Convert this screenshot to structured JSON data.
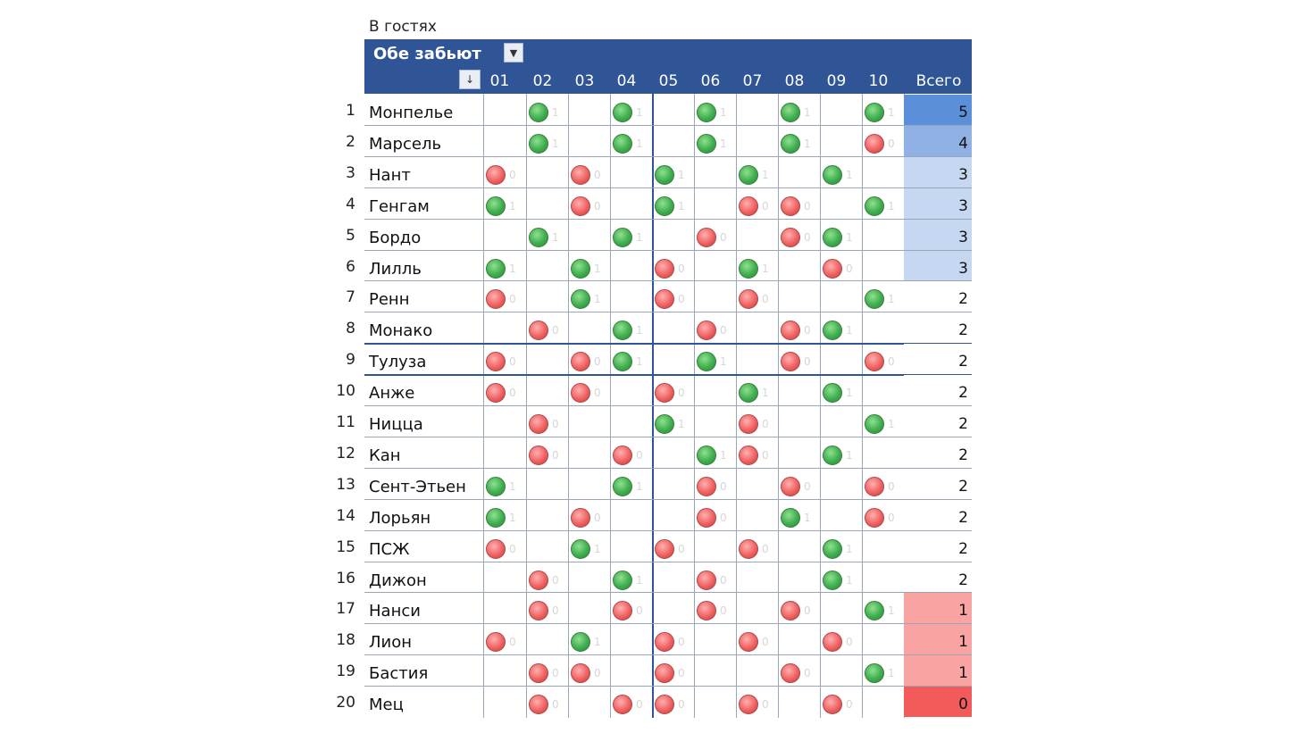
{
  "caption": "В гостях",
  "header": {
    "title": "Обе забьют",
    "filter_icon": "chevron-down-icon",
    "sort_icon": "sort-icon",
    "columns": [
      "01",
      "02",
      "03",
      "04",
      "05",
      "06",
      "07",
      "08",
      "09",
      "10"
    ],
    "total_label": "Всего"
  },
  "colors": {
    "header_bg": "#2f5596",
    "hit": "#3fae4f",
    "miss": "#f06262",
    "total_scale": {
      "5": "#5b8fd9",
      "4": "#8fb1e5",
      "3": "#c5d7f1",
      "2": "#ffffff",
      "1": "#f9a3a3",
      "0": "#f35b5b"
    }
  },
  "rows": [
    {
      "num": "1",
      "team": "Монпелье",
      "cells": [
        "",
        "1",
        "",
        "1",
        "",
        "1",
        "",
        "1",
        "",
        "1"
      ],
      "total": "5"
    },
    {
      "num": "2",
      "team": "Марсель",
      "cells": [
        "",
        "1",
        "",
        "1",
        "",
        "1",
        "",
        "1",
        "",
        "0"
      ],
      "total": "4"
    },
    {
      "num": "3",
      "team": "Нант",
      "cells": [
        "0",
        "",
        "0",
        "",
        "1",
        "",
        "1",
        "",
        "1",
        ""
      ],
      "total": "3"
    },
    {
      "num": "4",
      "team": "Генгам",
      "cells": [
        "1",
        "",
        "0",
        "",
        "1",
        "",
        "0",
        "0",
        "",
        "1"
      ],
      "total": "3"
    },
    {
      "num": "5",
      "team": "Бордо",
      "cells": [
        "",
        "1",
        "",
        "1",
        "",
        "0",
        "",
        "0",
        "1",
        ""
      ],
      "total": "3"
    },
    {
      "num": "6",
      "team": "Лилль",
      "cells": [
        "1",
        "",
        "1",
        "",
        "0",
        "",
        "1",
        "",
        "0",
        ""
      ],
      "total": "3"
    },
    {
      "num": "7",
      "team": "Ренн",
      "cells": [
        "0",
        "",
        "1",
        "",
        "0",
        "",
        "0",
        "",
        "",
        "1"
      ],
      "total": "2"
    },
    {
      "num": "8",
      "team": "Монако",
      "cells": [
        "",
        "0",
        "",
        "1",
        "",
        "0",
        "",
        "0",
        "1",
        ""
      ],
      "total": "2"
    },
    {
      "num": "9",
      "team": "Тулуза",
      "cells": [
        "0",
        "",
        "0",
        "1",
        "",
        "1",
        "",
        "0",
        "",
        "0"
      ],
      "total": "2"
    },
    {
      "num": "10",
      "team": "Анже",
      "cells": [
        "0",
        "",
        "0",
        "",
        "0",
        "",
        "1",
        "",
        "1",
        ""
      ],
      "total": "2"
    },
    {
      "num": "11",
      "team": "Ницца",
      "cells": [
        "",
        "0",
        "",
        "",
        "1",
        "",
        "0",
        "",
        "",
        "1"
      ],
      "total": "2"
    },
    {
      "num": "12",
      "team": "Кан",
      "cells": [
        "",
        "0",
        "",
        "0",
        "",
        "1",
        "0",
        "",
        "1",
        ""
      ],
      "total": "2"
    },
    {
      "num": "13",
      "team": "Сент-Этьен",
      "cells": [
        "1",
        "",
        "",
        "1",
        "",
        "0",
        "",
        "0",
        "",
        "0"
      ],
      "total": "2"
    },
    {
      "num": "14",
      "team": "Лорьян",
      "cells": [
        "1",
        "",
        "0",
        "",
        "",
        "0",
        "",
        "1",
        "",
        "0"
      ],
      "total": "2"
    },
    {
      "num": "15",
      "team": "ПСЖ",
      "cells": [
        "0",
        "",
        "1",
        "",
        "0",
        "",
        "0",
        "",
        "1",
        ""
      ],
      "total": "2"
    },
    {
      "num": "16",
      "team": "Дижон",
      "cells": [
        "",
        "0",
        "",
        "1",
        "",
        "0",
        "",
        "",
        "1",
        ""
      ],
      "total": "2"
    },
    {
      "num": "17",
      "team": "Нанси",
      "cells": [
        "",
        "0",
        "",
        "0",
        "",
        "0",
        "",
        "0",
        "",
        "1"
      ],
      "total": "1"
    },
    {
      "num": "18",
      "team": "Лион",
      "cells": [
        "0",
        "",
        "1",
        "",
        "0",
        "",
        "0",
        "",
        "0",
        ""
      ],
      "total": "1"
    },
    {
      "num": "19",
      "team": "Бастия",
      "cells": [
        "",
        "0",
        "0",
        "",
        "0",
        "",
        "",
        "0",
        "",
        "1"
      ],
      "total": "1"
    },
    {
      "num": "20",
      "team": "Мец",
      "cells": [
        "",
        "0",
        "",
        "0",
        "0",
        "",
        "0",
        "",
        "0",
        ""
      ],
      "total": "0"
    }
  ]
}
